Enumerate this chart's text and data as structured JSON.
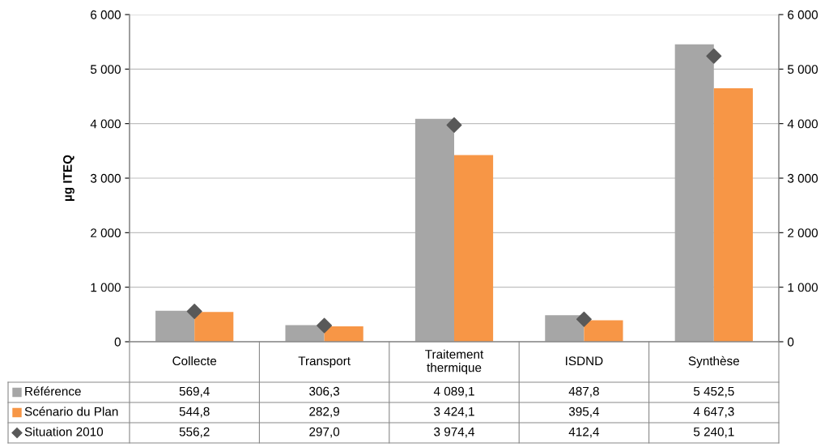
{
  "chart_data": {
    "type": "bar",
    "ylabel": "µg ITEQ",
    "categories": [
      "Collecte",
      "Transport",
      "Traitement\nthermique",
      "ISDND",
      "Synthèse"
    ],
    "series": [
      {
        "name": "Référence",
        "color": "#a6a6a6",
        "values": [
          569.4,
          306.3,
          4089.1,
          487.8,
          5452.5
        ],
        "value_labels": [
          "569,4",
          "306,3",
          "4 089,1",
          "487,8",
          "5 452,5"
        ]
      },
      {
        "name": "Scénario du Plan",
        "color": "#f79646",
        "values": [
          544.8,
          282.9,
          3424.1,
          395.4,
          4647.3
        ],
        "value_labels": [
          "544,8",
          "282,9",
          "3 424,1",
          "395,4",
          "4 647,3"
        ]
      },
      {
        "name": "Situation 2010",
        "type": "scatter",
        "marker": "diamond",
        "color": "#595959",
        "values": [
          556.2,
          297.0,
          3974.4,
          412.4,
          5240.1
        ],
        "value_labels": [
          "556,2",
          "297,0",
          "3 974,4",
          "412,4",
          "5 240,1"
        ]
      }
    ],
    "ylim": [
      0,
      6000
    ],
    "yticks": [
      0,
      {
        "value": 1000,
        "label": "1 000"
      },
      {
        "value": 2000,
        "label": "2 000"
      },
      {
        "value": 3000,
        "label": "3 000"
      },
      {
        "value": 4000,
        "label": "4 000"
      },
      {
        "value": 5000,
        "label": "5 000"
      },
      {
        "value": 6000,
        "label": "6 000"
      }
    ],
    "y2lim": [
      0,
      6000
    ],
    "y2ticks": [
      0,
      {
        "value": 1000,
        "label": "1 000"
      },
      {
        "value": 2000,
        "label": "2 000"
      },
      {
        "value": 3000,
        "label": "3 000"
      },
      {
        "value": 4000,
        "label": "4 000"
      },
      {
        "value": 5000,
        "label": "5 000"
      },
      {
        "value": 6000,
        "label": "6 000"
      }
    ],
    "grid": "y",
    "legend": "bottom left"
  }
}
